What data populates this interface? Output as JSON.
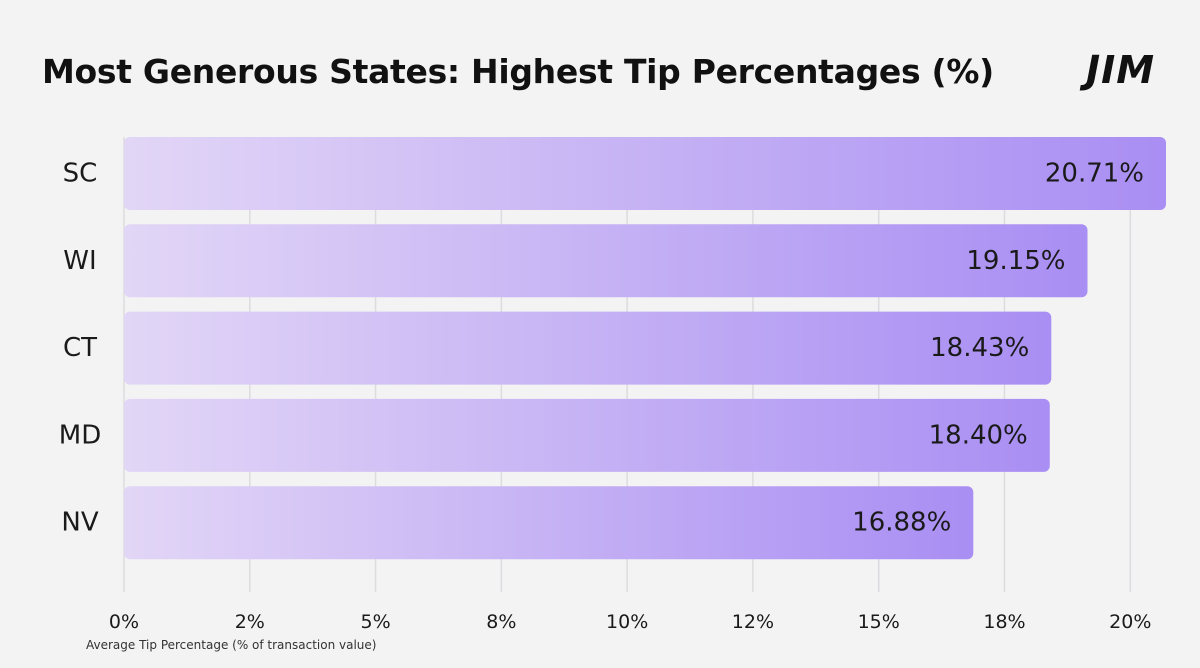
{
  "title": "Most Generous States: Highest Tip Percentages (%)",
  "brand": "JIM",
  "colors": {
    "background": "#f3f3f4",
    "bar_start": "#e2d6f6",
    "bar_end": "#a98ef3",
    "gridline": "#dcdcdf",
    "text": "#1a1a1a"
  },
  "chart_data": {
    "type": "bar",
    "orientation": "horizontal",
    "title": "Most Generous States: Highest Tip Percentages (%)",
    "categories": [
      "SC",
      "WI",
      "CT",
      "MD",
      "NV"
    ],
    "values": [
      20.71,
      19.15,
      18.43,
      18.4,
      16.88
    ],
    "value_labels": [
      "20.71%",
      "19.15%",
      "18.43%",
      "18.40%",
      "16.88%"
    ],
    "xlabel": "Average Tip Percentage (% of transaction value)",
    "ylabel": "",
    "xlim": [
      0,
      20.71
    ],
    "x_ticks": [
      0,
      2.5,
      5,
      7.5,
      10,
      12.5,
      15,
      17.5,
      20
    ],
    "x_tick_labels": [
      "0%",
      "2%",
      "5%",
      "8%",
      "10%",
      "12%",
      "15%",
      "18%",
      "20%"
    ],
    "grid": "vertical",
    "legend": "none"
  }
}
